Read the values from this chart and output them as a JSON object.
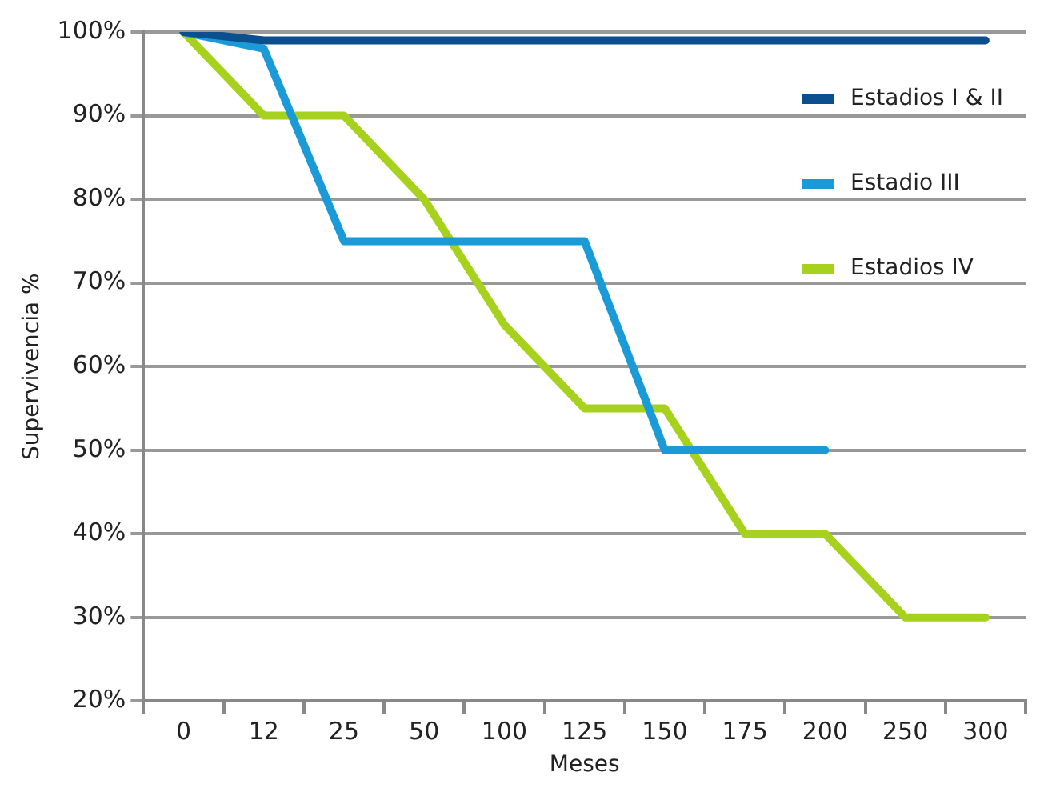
{
  "chart_data": {
    "type": "line",
    "xlabel": "Meses",
    "ylabel": "Supervivencia %",
    "categories": [
      "0",
      "12",
      "25",
      "50",
      "100",
      "125",
      "150",
      "175",
      "200",
      "250",
      "300"
    ],
    "series": [
      {
        "name": "Estadios I & II",
        "color": "#0b4f8e",
        "values": [
          100,
          99,
          99,
          99,
          99,
          99,
          99,
          99,
          99,
          99,
          99
        ]
      },
      {
        "name": "Estadio III",
        "color": "#1a9ad6",
        "values": [
          100,
          98,
          75,
          75,
          75,
          75,
          50,
          50,
          50,
          null,
          null
        ]
      },
      {
        "name": "Estadios IV",
        "color": "#a6d21e",
        "values": [
          100,
          90,
          90,
          80,
          65,
          55,
          55,
          40,
          40,
          30,
          30
        ]
      }
    ],
    "ylim": [
      20,
      100
    ],
    "yticks": [
      {
        "value": 20,
        "label": "20%"
      },
      {
        "value": 30,
        "label": "30%"
      },
      {
        "value": 40,
        "label": "40%"
      },
      {
        "value": 50,
        "label": "50%"
      },
      {
        "value": 60,
        "label": "60%"
      },
      {
        "value": 70,
        "label": "70%"
      },
      {
        "value": 80,
        "label": "80%"
      },
      {
        "value": 90,
        "label": "90%"
      },
      {
        "value": 100,
        "label": "100%"
      }
    ],
    "grid": "y",
    "legend": "right",
    "marker": "none",
    "line_style": "solid"
  }
}
